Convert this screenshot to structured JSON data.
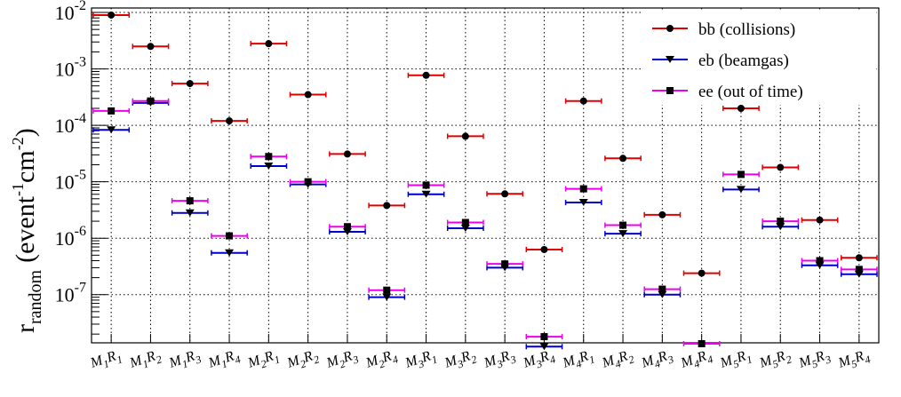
{
  "chart_data": {
    "type": "scatter",
    "title": "",
    "xlabel": "",
    "ylabel": "r",
    "ylabel_subscript": "random",
    "ylabel_units": "(event",
    "ylabel_units_sup1": "-1",
    "ylabel_units_mid": "cm",
    "ylabel_units_sup2": "-2",
    "ylabel_units_end": ")",
    "yscale": "log",
    "ylim": [
      1.4e-08,
      0.012
    ],
    "grid": true,
    "legend_position": "top-right",
    "y_ticks": [
      {
        "value": 1e-07,
        "base": "10",
        "exp": "-7"
      },
      {
        "value": 1e-06,
        "base": "10",
        "exp": "-6"
      },
      {
        "value": 1e-05,
        "base": "10",
        "exp": "-5"
      },
      {
        "value": 0.0001,
        "base": "10",
        "exp": "-4"
      },
      {
        "value": 0.001,
        "base": "10",
        "exp": "-3"
      },
      {
        "value": 0.01,
        "base": "10",
        "exp": "-2"
      }
    ],
    "categories": [
      {
        "m": "M1",
        "r": "R1"
      },
      {
        "m": "M1",
        "r": "R2"
      },
      {
        "m": "M1",
        "r": "R3"
      },
      {
        "m": "M1",
        "r": "R4"
      },
      {
        "m": "M2",
        "r": "R1"
      },
      {
        "m": "M2",
        "r": "R2"
      },
      {
        "m": "M2",
        "r": "R3"
      },
      {
        "m": "M2",
        "r": "R4"
      },
      {
        "m": "M3",
        "r": "R1"
      },
      {
        "m": "M3",
        "r": "R2"
      },
      {
        "m": "M3",
        "r": "R3"
      },
      {
        "m": "M3",
        "r": "R4"
      },
      {
        "m": "M4",
        "r": "R1"
      },
      {
        "m": "M4",
        "r": "R2"
      },
      {
        "m": "M4",
        "r": "R3"
      },
      {
        "m": "M4",
        "r": "R4"
      },
      {
        "m": "M5",
        "r": "R1"
      },
      {
        "m": "M5",
        "r": "R2"
      },
      {
        "m": "M5",
        "r": "R3"
      },
      {
        "m": "M5",
        "r": "R4"
      }
    ],
    "series": [
      {
        "name": "bb (collisions)",
        "color": "#e00000",
        "marker": "circle",
        "values": [
          0.009,
          0.0025,
          0.00055,
          0.00012,
          0.0028,
          0.00035,
          3.1e-05,
          3.8e-06,
          0.00077,
          6.4e-05,
          6.1e-06,
          6.3e-07,
          0.00027,
          2.6e-05,
          2.6e-06,
          2.4e-07,
          0.0002,
          1.8e-05,
          2.1e-06,
          4.5e-07
        ]
      },
      {
        "name": "eb (beamgas)",
        "color": "#0000cc",
        "marker": "triangle-down",
        "values": [
          8.3e-05,
          0.00025,
          2.8e-06,
          5.5e-07,
          1.9e-05,
          9e-06,
          1.3e-06,
          9e-08,
          6e-06,
          1.5e-06,
          3e-07,
          1.2e-08,
          4.3e-06,
          1.2e-06,
          1e-07,
          null,
          7.3e-06,
          1.6e-06,
          3.3e-07,
          2.3e-07
        ]
      },
      {
        "name": "ee (out of time)",
        "color": "#ee00ee",
        "marker": "square",
        "values": [
          0.00018,
          0.00027,
          4.6e-06,
          1.1e-06,
          2.8e-05,
          1e-05,
          1.6e-06,
          1.2e-07,
          8.7e-06,
          1.9e-06,
          3.5e-07,
          1.8e-08,
          7.5e-06,
          1.7e-06,
          1.25e-07,
          1.35e-08,
          1.35e-05,
          2e-06,
          4e-07,
          2.8e-07
        ]
      }
    ]
  }
}
